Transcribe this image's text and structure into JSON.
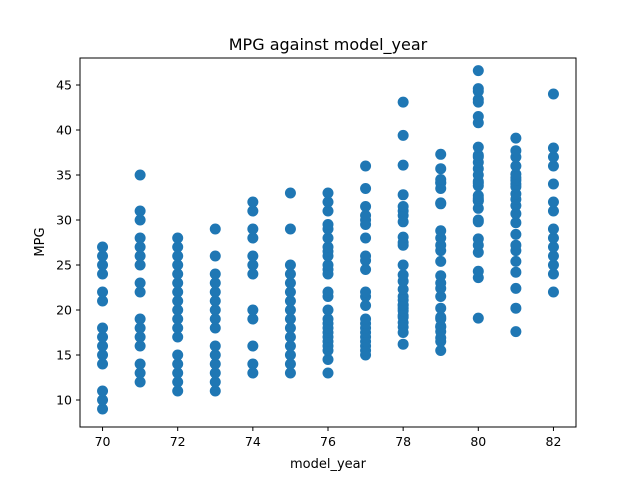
{
  "chart_data": {
    "type": "scatter",
    "title": "MPG against model_year",
    "xlabel": "model_year",
    "ylabel": "MPG",
    "xlim": [
      69.4,
      82.6
    ],
    "ylim": [
      7.0,
      48.0
    ],
    "xticks": [
      70,
      72,
      74,
      76,
      78,
      80,
      82
    ],
    "yticks": [
      10,
      15,
      20,
      25,
      30,
      35,
      40,
      45
    ],
    "grid": false,
    "color": "#1f77b4",
    "points": [
      {
        "x": 70,
        "y": [
          9,
          10,
          11,
          14,
          15,
          16,
          17,
          18,
          21,
          22,
          24,
          25,
          26,
          27
        ]
      },
      {
        "x": 71,
        "y": [
          12,
          13,
          14,
          16,
          17,
          18,
          19,
          22,
          23,
          25,
          26,
          27,
          28,
          30,
          31,
          35
        ]
      },
      {
        "x": 72,
        "y": [
          11,
          12,
          13,
          14,
          15,
          17,
          18,
          19,
          20,
          21,
          22,
          23,
          24,
          25,
          26,
          27,
          28
        ]
      },
      {
        "x": 73,
        "y": [
          11,
          12,
          13,
          14,
          15,
          16,
          18,
          19,
          20,
          21,
          22,
          23,
          24,
          26,
          29
        ]
      },
      {
        "x": 74,
        "y": [
          13,
          14,
          16,
          19,
          20,
          24,
          25,
          26,
          28,
          29,
          31,
          32
        ]
      },
      {
        "x": 75,
        "y": [
          13,
          14,
          15,
          16,
          17,
          18,
          19,
          20,
          21,
          22,
          23,
          24,
          25,
          29,
          33
        ]
      },
      {
        "x": 76,
        "y": [
          13,
          14.5,
          15.5,
          16,
          16.5,
          17,
          17.5,
          18,
          18.5,
          19,
          20,
          21.5,
          22,
          24,
          24.5,
          25,
          26,
          26.5,
          27,
          28,
          29,
          29.5,
          31,
          32,
          33
        ]
      },
      {
        "x": 77,
        "y": [
          15,
          15.5,
          16,
          16.5,
          17,
          17.5,
          18,
          18.5,
          19,
          20.5,
          21.5,
          22,
          24.5,
          25.5,
          26,
          28,
          29.5,
          30,
          30.5,
          31.5,
          33.5,
          36
        ]
      },
      {
        "x": 78,
        "y": [
          16.2,
          17.5,
          18.1,
          18.6,
          19.2,
          19.4,
          19.9,
          20.2,
          20.5,
          20.6,
          21.1,
          21.5,
          22.3,
          23.2,
          23.9,
          25,
          27.2,
          27.5,
          28.1,
          29.8,
          30.5,
          31,
          31.5,
          32.8,
          36.1,
          39.4,
          43.1
        ]
      },
      {
        "x": 79,
        "y": [
          15.5,
          16.5,
          16.9,
          17.6,
          18.1,
          18.2,
          19,
          19.2,
          20.2,
          21.5,
          22.4,
          23,
          23.8,
          25.4,
          26.6,
          27.2,
          28,
          28.8,
          31.8,
          31.9,
          33.5,
          34.1,
          34.2,
          34.5,
          35.7,
          37.3
        ]
      },
      {
        "x": 80,
        "y": [
          19.1,
          23.6,
          24.3,
          26.4,
          27.2,
          27.9,
          29.8,
          30,
          31.3,
          32.1,
          32.2,
          32.4,
          32.7,
          33.8,
          34.1,
          34.3,
          35,
          35.7,
          36.4,
          37,
          37.2,
          38.1,
          40.8,
          41.5,
          43.1,
          43.4,
          44.3,
          44.6,
          46.6
        ]
      },
      {
        "x": 81,
        "y": [
          17.6,
          20.2,
          22.4,
          24.2,
          25.4,
          26.6,
          27.2,
          28.4,
          29.7,
          30.7,
          31.6,
          32.3,
          32.9,
          33.7,
          34,
          34.4,
          34.7,
          35.1,
          36,
          37,
          37.7,
          39.1
        ]
      },
      {
        "x": 82,
        "y": [
          22,
          24,
          25,
          26,
          27,
          28,
          29,
          31,
          32,
          34,
          36,
          37,
          38,
          44
        ]
      }
    ]
  }
}
